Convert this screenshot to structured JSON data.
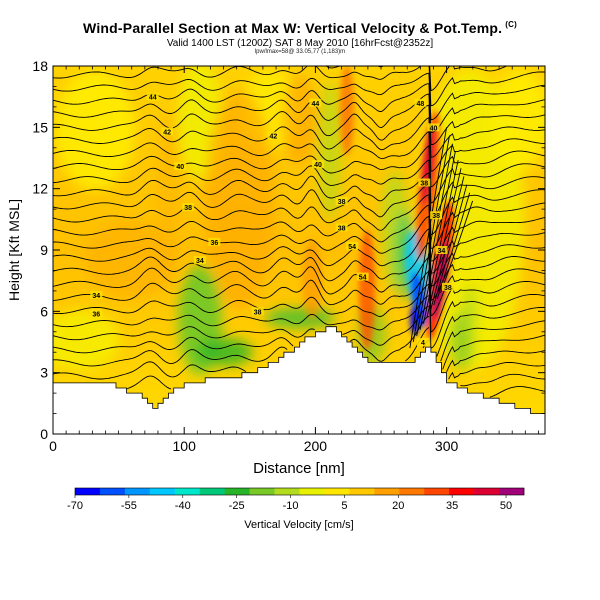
{
  "title": {
    "main": "Wind-Parallel Section at Max W: Vertical Velocity & Pot.Temp.",
    "copyright": "(C)",
    "valid": "Valid 1400 LST (1200Z) SAT 8 May 2010 [16hrFcst@2352z]",
    "location": "lpw/lmax=58@ 33.05,77 (1,183)m"
  },
  "chart_data": {
    "type": "heatmap",
    "xlabel": "Distance [nm]",
    "ylabel": "Height [Kft MSL]",
    "xlim": [
      0,
      375
    ],
    "ylim": [
      0,
      18
    ],
    "xticks": [
      "0",
      "100",
      "200",
      "300"
    ],
    "xtick_values": [
      0,
      100,
      200,
      300
    ],
    "yticks": [
      "0",
      "3",
      "6",
      "9",
      "12",
      "15",
      "18"
    ],
    "ytick_values": [
      0,
      3,
      6,
      9,
      12,
      15,
      18
    ],
    "terrain": {
      "x": [
        0,
        10,
        20,
        30,
        40,
        50,
        60,
        70,
        75,
        80,
        90,
        100,
        110,
        120,
        130,
        140,
        150,
        160,
        170,
        180,
        190,
        200,
        210,
        215,
        220,
        230,
        240,
        250,
        260,
        270,
        275,
        280,
        285,
        290,
        295,
        300,
        310,
        320,
        330,
        340,
        350,
        360,
        375
      ],
      "height": [
        2.6,
        2.6,
        2.6,
        2.6,
        2.5,
        2.3,
        2.0,
        1.7,
        1.3,
        1.5,
        2.1,
        2.5,
        2.6,
        2.7,
        2.7,
        2.8,
        3.0,
        3.3,
        3.7,
        4.1,
        4.6,
        5.0,
        5.2,
        5.2,
        4.8,
        4.2,
        3.6,
        3.4,
        3.4,
        3.5,
        3.8,
        4.0,
        4.2,
        3.8,
        3.2,
        2.6,
        2.2,
        2.0,
        1.8,
        1.6,
        1.4,
        1.2,
        0.9
      ]
    },
    "updraft_cores": [
      {
        "x": 290,
        "z_bottom": 4,
        "z_top": 15.5,
        "peak_cm_s": 40
      },
      {
        "x": 298,
        "z_bottom": 4,
        "z_top": 12,
        "peak_cm_s": 50
      },
      {
        "x": 237,
        "z_bottom": 4,
        "z_top": 11,
        "peak_cm_s": 30
      }
    ],
    "downdraft_cores": [
      {
        "x": 280,
        "z_bottom": 4.5,
        "z_top": 8,
        "peak_cm_s": -55
      }
    ],
    "isentrope_labels": [
      {
        "text": "44",
        "x": 76,
        "z": 16.5
      },
      {
        "text": "42",
        "x": 87,
        "z": 14.8
      },
      {
        "text": "40",
        "x": 97,
        "z": 13.1
      },
      {
        "text": "38",
        "x": 103,
        "z": 11.1
      },
      {
        "text": "36",
        "x": 123,
        "z": 9.4
      },
      {
        "text": "34",
        "x": 112,
        "z": 8.5
      },
      {
        "text": "34",
        "x": 33,
        "z": 6.8
      },
      {
        "text": "36",
        "x": 33,
        "z": 5.9
      },
      {
        "text": "38",
        "x": 156,
        "z": 6.0
      },
      {
        "text": "44",
        "x": 200,
        "z": 16.2
      },
      {
        "text": "40",
        "x": 202,
        "z": 13.2
      },
      {
        "text": "42",
        "x": 168,
        "z": 14.6
      },
      {
        "text": "38",
        "x": 220,
        "z": 11.4
      },
      {
        "text": "38",
        "x": 220,
        "z": 10.1
      },
      {
        "text": "54",
        "x": 228,
        "z": 9.2
      },
      {
        "text": "54",
        "x": 236,
        "z": 7.7
      },
      {
        "text": "48",
        "x": 280,
        "z": 16.2
      },
      {
        "text": "40",
        "x": 290,
        "z": 15.0
      },
      {
        "text": "38",
        "x": 283,
        "z": 12.3
      },
      {
        "text": "38",
        "x": 292,
        "z": 10.7
      },
      {
        "text": "34",
        "x": 296,
        "z": 9.0
      },
      {
        "text": "38",
        "x": 301,
        "z": 7.2
      },
      {
        "text": "4",
        "x": 282,
        "z": 4.5
      }
    ],
    "colorbar": {
      "label": "Vertical Velocity [cm/s]",
      "ticks": [
        "-70",
        "-55",
        "-40",
        "-25",
        "-10",
        "5",
        "20",
        "35",
        "50"
      ],
      "tick_values": [
        -70,
        -55,
        -40,
        -25,
        -10,
        5,
        20,
        35,
        50
      ],
      "range": [
        -70,
        55
      ],
      "colors": [
        "#0000ff",
        "#0050ff",
        "#0096ff",
        "#00c8ff",
        "#00e6c8",
        "#00c878",
        "#28b428",
        "#78c828",
        "#b4dc1e",
        "#e6f000",
        "#ffe600",
        "#ffc800",
        "#ffa000",
        "#ff7800",
        "#ff4600",
        "#ff0000",
        "#dc0032",
        "#a00078"
      ]
    }
  }
}
